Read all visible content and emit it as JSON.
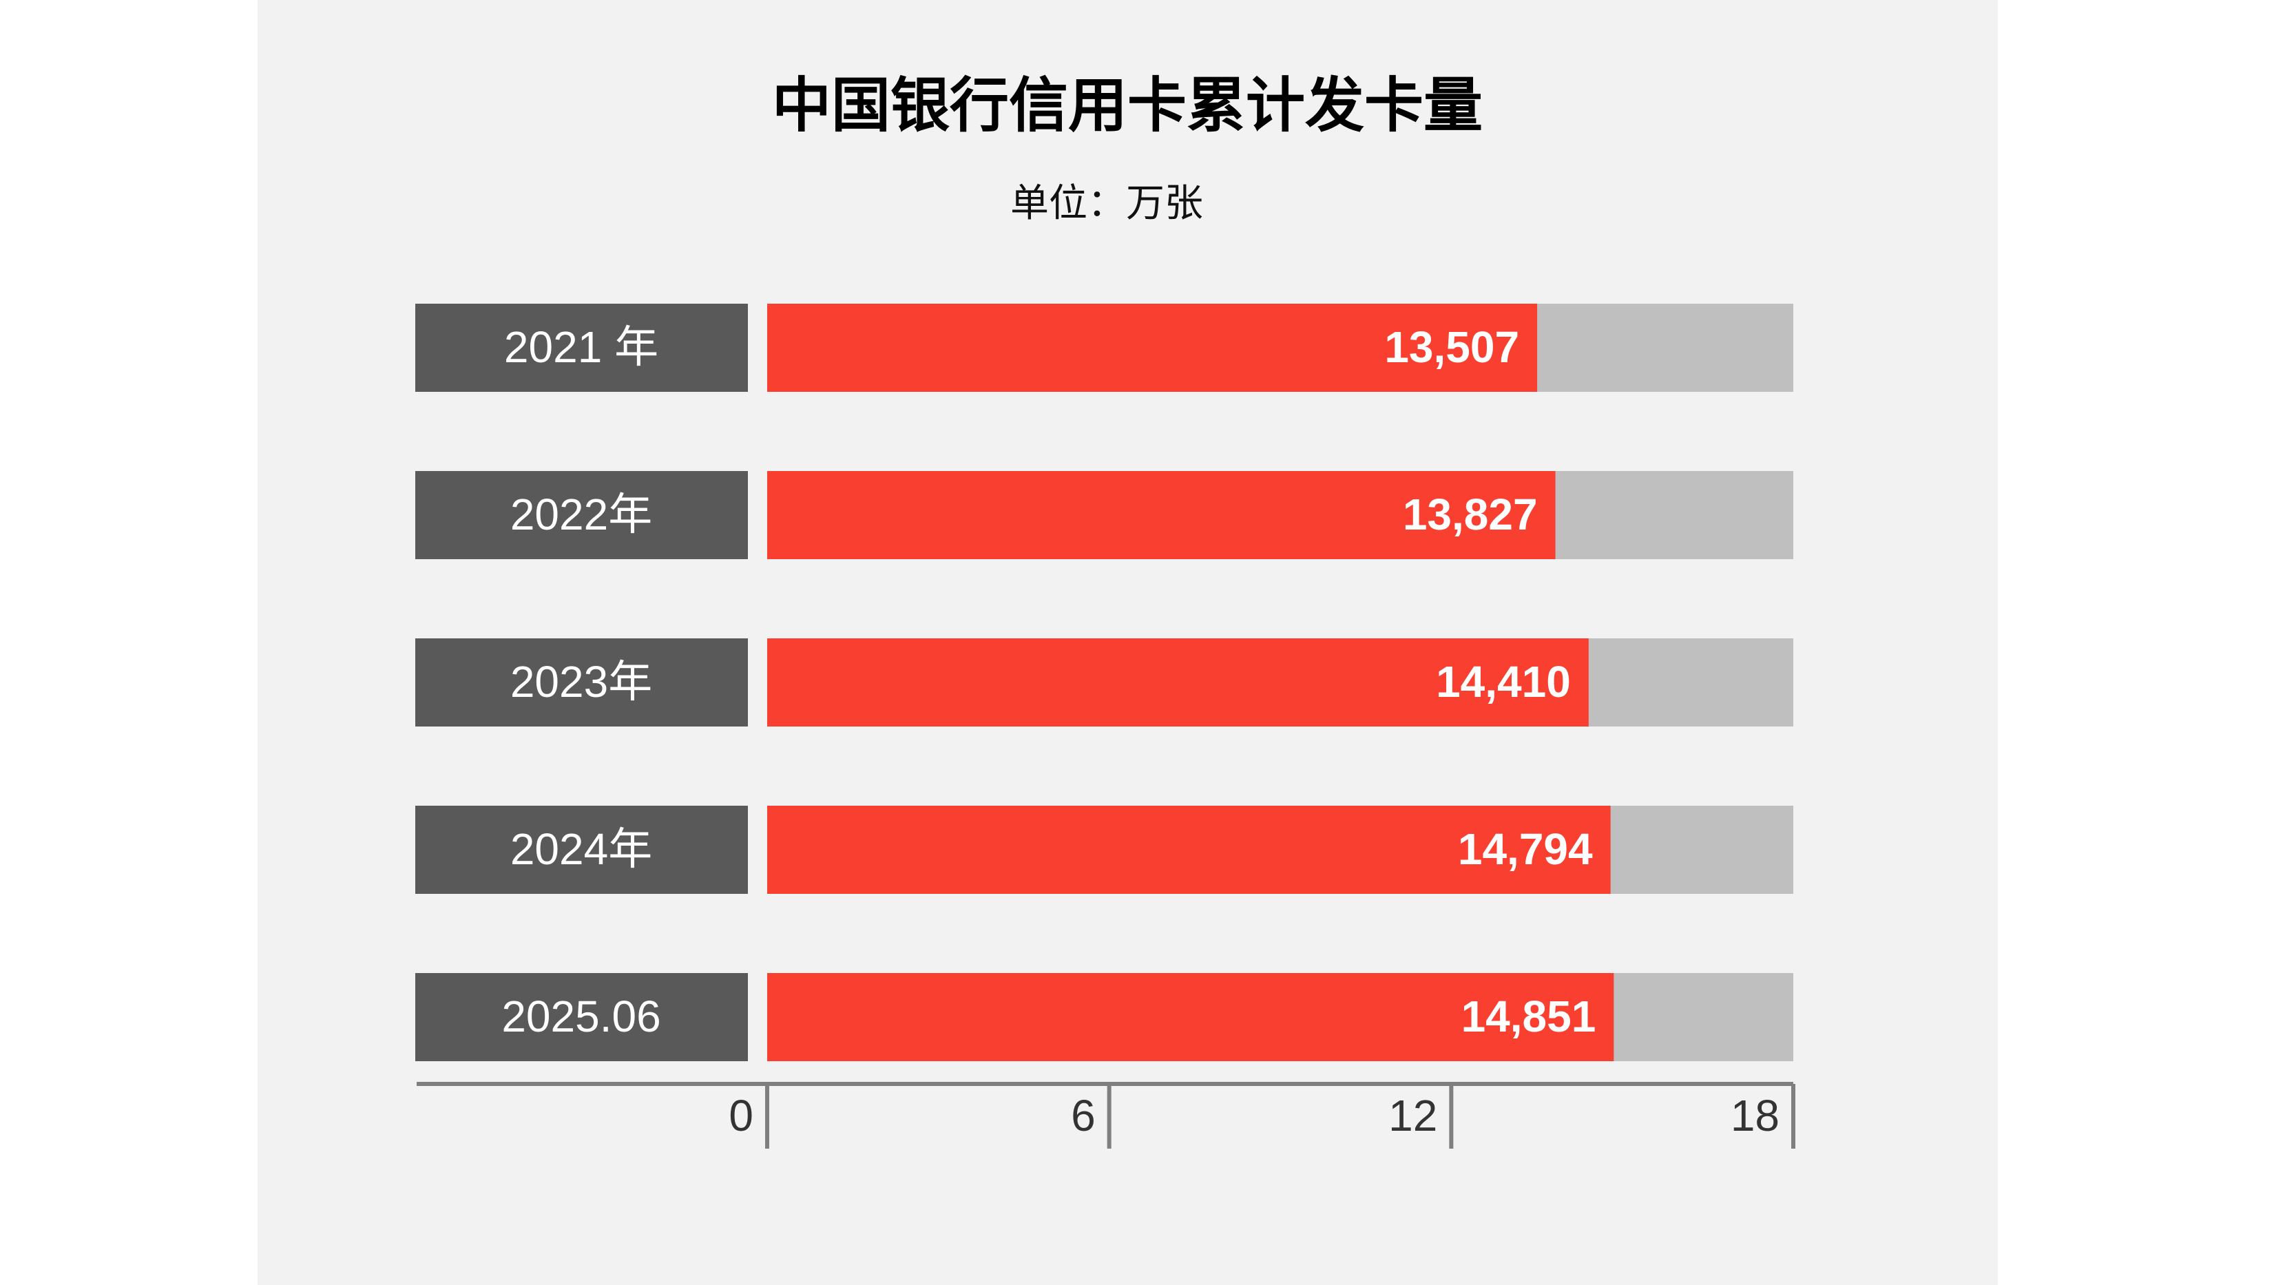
{
  "chart_data": {
    "type": "bar",
    "orientation": "horizontal",
    "title": "中国银行信用卡累计发卡量",
    "subtitle": "单位：万张",
    "categories": [
      "2021 年",
      "2022年",
      "2023年",
      "2024年",
      "2025.06"
    ],
    "values": [
      13.507,
      13.827,
      14.41,
      14.794,
      14.851
    ],
    "value_labels": [
      "13,507",
      "13,827",
      "14,410",
      "14,794",
      "14,851"
    ],
    "color": "#f94030",
    "xlim": [
      0,
      18
    ],
    "xticks": [
      0,
      6,
      12,
      18
    ],
    "grid": false
  }
}
